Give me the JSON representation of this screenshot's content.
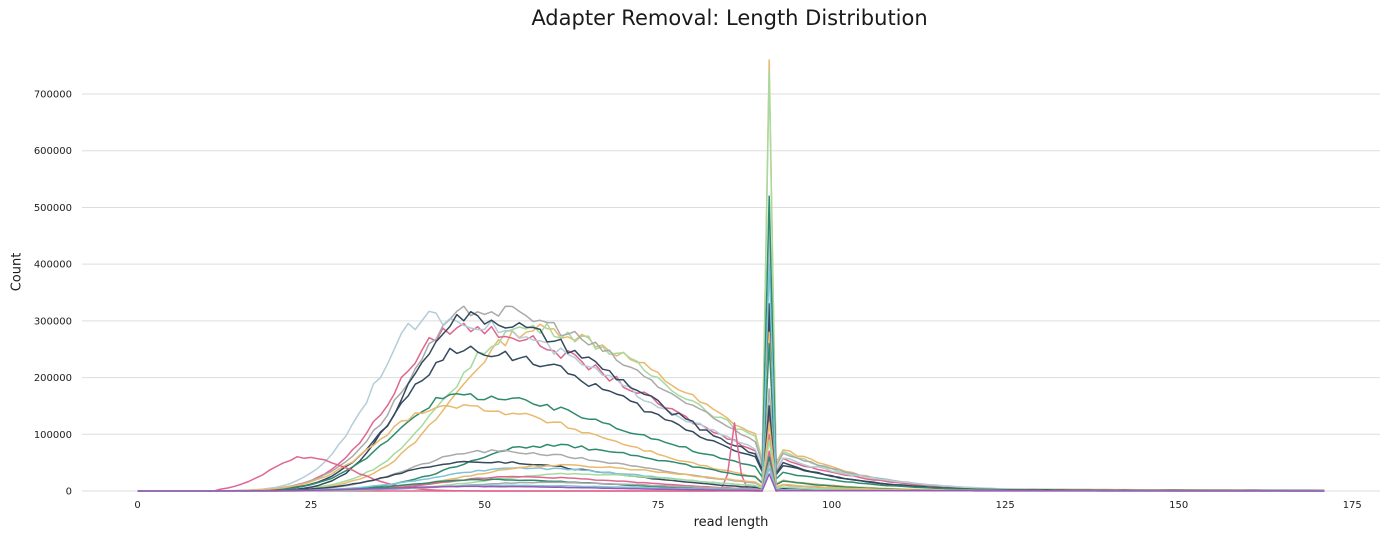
{
  "chart_data": {
    "type": "line",
    "title": "Adapter Removal: Length Distribution",
    "xlabel": "read length",
    "ylabel": "Count",
    "xlim": [
      -8,
      179
    ],
    "ylim": [
      0,
      760000
    ],
    "xticks": [
      0,
      25,
      50,
      75,
      100,
      125,
      150,
      175
    ],
    "yticks": [
      0,
      100000,
      200000,
      300000,
      400000,
      500000,
      600000,
      700000
    ],
    "ytick_labels": [
      "0",
      "100000",
      "200000",
      "300000",
      "400000",
      "500000",
      "600000",
      "700000"
    ],
    "grid": "horizontal",
    "legend": "none",
    "series": [
      {
        "color": "#e9b96e",
        "peak": 285000,
        "mu": 57,
        "sigL": 11,
        "sigR": 22,
        "spike": 760000,
        "tail": 8000
      },
      {
        "color": "#a6dba0",
        "peak": 288000,
        "mu": 56,
        "sigL": 11,
        "sigR": 22,
        "spike": 740000,
        "tail": 7000
      },
      {
        "color": "#e0668e",
        "peak": 288000,
        "mu": 46,
        "sigL": 9,
        "sigR": 26,
        "spike": 480000,
        "tail": 6000
      },
      {
        "color": "#aaaaaa",
        "peak": 320000,
        "mu": 49,
        "sigL": 10,
        "sigR": 25,
        "spike": 420000,
        "tail": 6000
      },
      {
        "color": "#b5cdd8",
        "peak": 305000,
        "mu": 42,
        "sigL": 8,
        "sigR": 28,
        "spike": 460000,
        "tail": 5000
      },
      {
        "color": "#34495e",
        "peak": 305000,
        "mu": 47,
        "sigL": 8,
        "sigR": 24,
        "spike": 330000,
        "tail": 5000
      },
      {
        "color": "#34495e",
        "peak": 248000,
        "mu": 47,
        "sigL": 9,
        "sigR": 25,
        "spike": 300000,
        "tail": 4000
      },
      {
        "color": "#2e8b6e",
        "peak": 168000,
        "mu": 46,
        "sigL": 9,
        "sigR": 26,
        "spike": 520000,
        "tail": 3000
      },
      {
        "color": "#e9b96e",
        "peak": 150000,
        "mu": 44,
        "sigL": 9,
        "sigR": 24,
        "spike": 280000,
        "tail": 3000
      },
      {
        "color": "#e0668e",
        "peak": 120000,
        "mu": 86,
        "sigL": 0.6,
        "sigR": 0.6,
        "spike": 140000,
        "tail": 1000
      },
      {
        "color": "#2e8b6e",
        "peak": 80000,
        "mu": 58,
        "sigL": 11,
        "sigR": 20,
        "spike": 260000,
        "tail": 2000
      },
      {
        "color": "#aaaaaa",
        "peak": 70000,
        "mu": 50,
        "sigL": 10,
        "sigR": 22,
        "spike": 180000,
        "tail": 2000
      },
      {
        "color": "#e0668e",
        "peak": 60000,
        "mu": 24,
        "sigL": 5,
        "sigR": 7,
        "spike": 100000,
        "tail": 2000
      },
      {
        "color": "#34495e",
        "peak": 52000,
        "mu": 48,
        "sigL": 10,
        "sigR": 20,
        "spike": 150000,
        "tail": 2000
      },
      {
        "color": "#7fc3d6",
        "peak": 40000,
        "mu": 55,
        "sigL": 12,
        "sigR": 20,
        "spike": 400000,
        "tail": 1500
      },
      {
        "color": "#e9b96e",
        "peak": 45000,
        "mu": 60,
        "sigL": 12,
        "sigR": 20,
        "spike": 120000,
        "tail": 1500
      },
      {
        "color": "#a6dba0",
        "peak": 30000,
        "mu": 62,
        "sigL": 12,
        "sigR": 18,
        "spike": 90000,
        "tail": 1000
      },
      {
        "color": "#e0668e",
        "peak": 25000,
        "mu": 54,
        "sigL": 10,
        "sigR": 18,
        "spike": 70000,
        "tail": 1000
      },
      {
        "color": "#2e8b6e",
        "peak": 20000,
        "mu": 50,
        "sigL": 10,
        "sigR": 18,
        "spike": 60000,
        "tail": 800
      },
      {
        "color": "#aaaaaa",
        "peak": 15000,
        "mu": 58,
        "sigL": 12,
        "sigR": 18,
        "spike": 50000,
        "tail": 800
      },
      {
        "color": "#7fc3d6",
        "peak": 10000,
        "mu": 52,
        "sigL": 12,
        "sigR": 20,
        "spike": 40000,
        "tail": 500
      },
      {
        "color": "#9b59b6",
        "peak": 8000,
        "mu": 48,
        "sigL": 12,
        "sigR": 20,
        "spike": 30000,
        "tail": 500
      }
    ]
  }
}
